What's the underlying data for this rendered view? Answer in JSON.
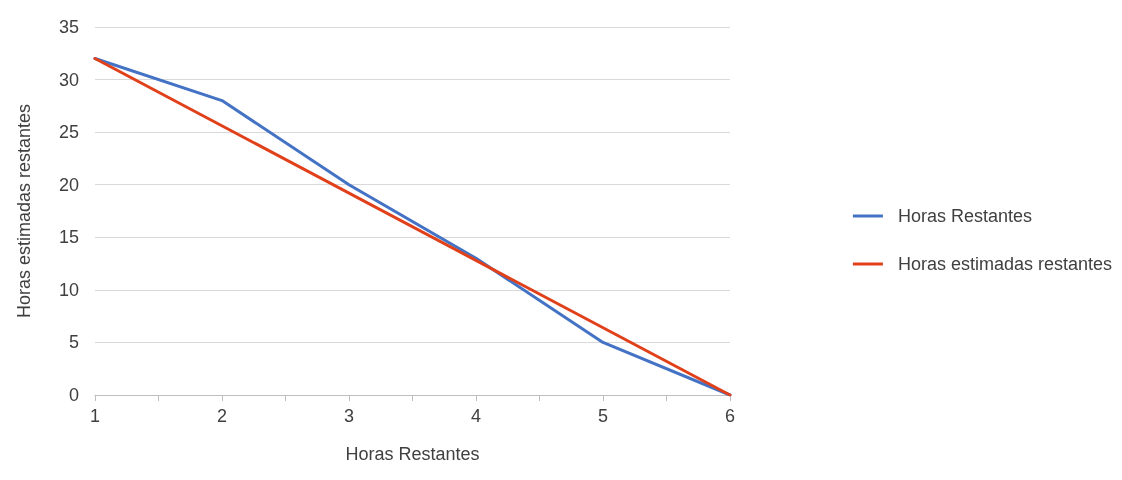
{
  "chart_data": {
    "type": "line",
    "xlabel": "Horas Restantes",
    "ylabel": "Horas estimadas restantes",
    "x": [
      1,
      2,
      3,
      4,
      5,
      6
    ],
    "series": [
      {
        "name": "Horas Restantes",
        "color": "#4472c4",
        "values": [
          32,
          28,
          20,
          13,
          5,
          0
        ]
      },
      {
        "name": "Horas estimadas restantes",
        "color": "#e0401a",
        "x": [
          1,
          6
        ],
        "values": [
          32,
          0
        ]
      }
    ],
    "xlim": [
      1,
      6
    ],
    "xticks": [
      1,
      {
        "value": 1.5,
        "label": null
      },
      2,
      {
        "value": 2.5,
        "label": null
      },
      3,
      {
        "value": 3.5,
        "label": null
      },
      4,
      {
        "value": 4.5,
        "label": null
      },
      5,
      {
        "value": 5.5,
        "label": null
      },
      6
    ],
    "ylim": [
      0,
      35
    ],
    "yticks": [
      0,
      5,
      10,
      15,
      20,
      25,
      30,
      35
    ],
    "grid": "y",
    "legend": "right",
    "marker": "none",
    "line_style": "solid"
  }
}
